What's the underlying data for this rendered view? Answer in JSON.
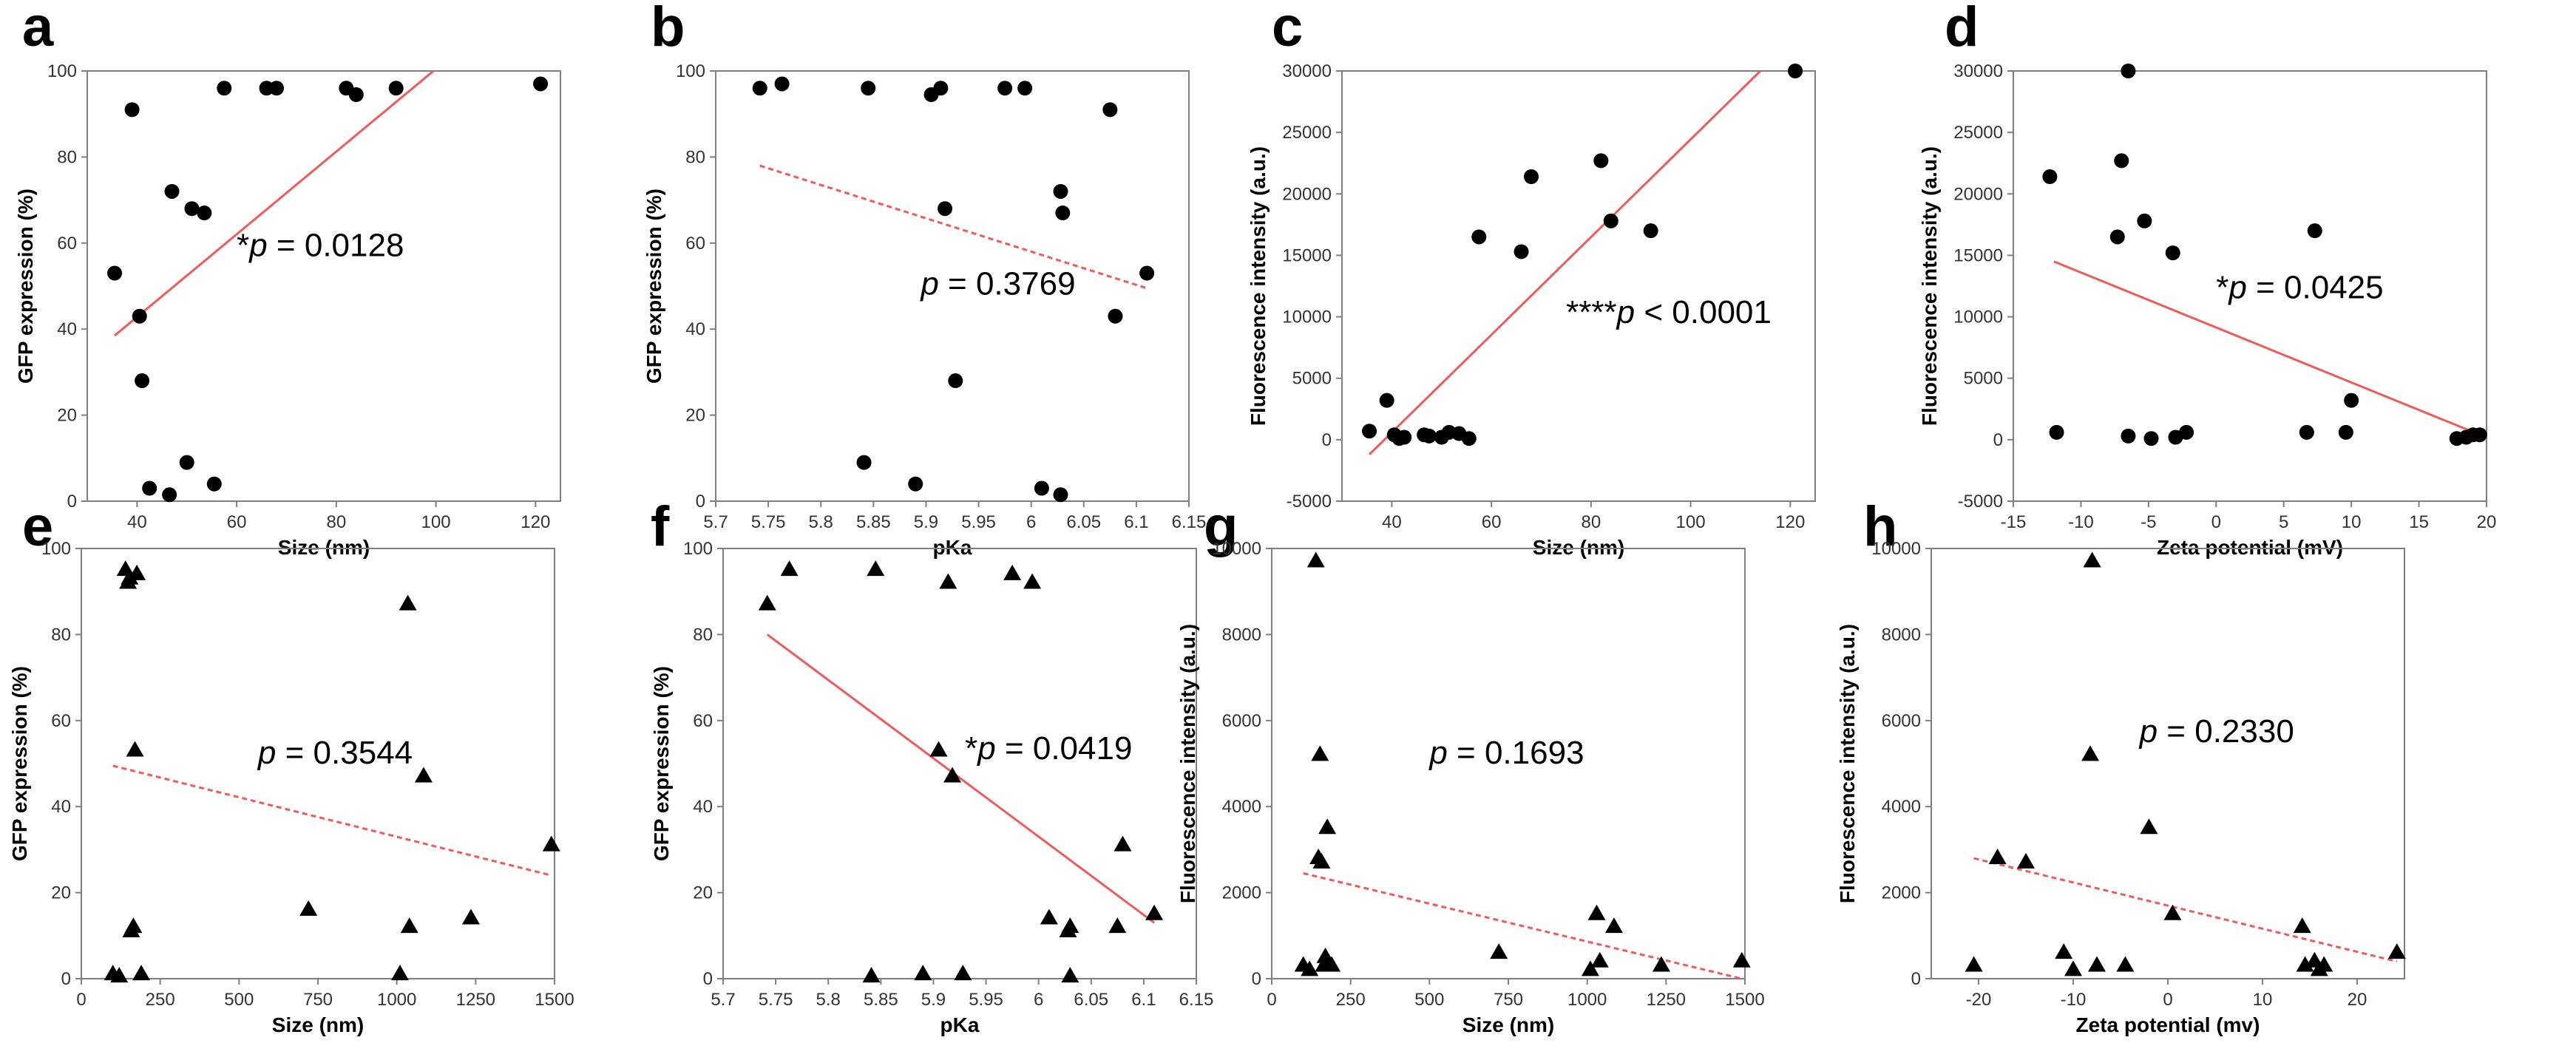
{
  "chart_data": [
    {
      "id": "a",
      "type": "scatter",
      "letter": "a",
      "marker": "circle",
      "xlabel": "Size (nm)",
      "ylabel": "GFP expression (%)",
      "xlim": [
        30,
        125
      ],
      "ylim": [
        0,
        100
      ],
      "xticks": [
        40,
        60,
        80,
        100,
        120
      ],
      "xtick_labels": [
        "40",
        "60",
        "80",
        "100",
        "120"
      ],
      "yticks": [
        0,
        20,
        40,
        60,
        80,
        100
      ],
      "ytick_labels": [
        "0",
        "20",
        "40",
        "60",
        "80",
        "100"
      ],
      "points": [
        [
          35.5,
          53
        ],
        [
          39,
          91
        ],
        [
          40.5,
          43
        ],
        [
          41,
          28
        ],
        [
          42.5,
          3
        ],
        [
          46.5,
          1.5
        ],
        [
          47,
          72
        ],
        [
          50,
          9
        ],
        [
          51,
          68
        ],
        [
          53.5,
          67
        ],
        [
          55.5,
          4
        ],
        [
          57.5,
          96
        ],
        [
          66,
          96
        ],
        [
          68,
          96
        ],
        [
          82,
          96
        ],
        [
          84,
          94.5
        ],
        [
          92,
          96
        ],
        [
          121,
          97
        ]
      ],
      "fit": {
        "x": [
          35.5,
          99.5
        ],
        "y": [
          38.5,
          100
        ],
        "style": "solid"
      },
      "annotation": {
        "star": "*",
        "p": "p",
        "rest": " = 0.0128",
        "x": 60,
        "y": 57
      }
    },
    {
      "id": "b",
      "type": "scatter",
      "letter": "b",
      "marker": "circle",
      "xlabel": "pKa",
      "ylabel": "GFP expression (%)",
      "xlim": [
        5.7,
        6.15
      ],
      "ylim": [
        0,
        100
      ],
      "xticks": [
        5.7,
        5.75,
        5.8,
        5.85,
        5.9,
        5.95,
        6,
        6.05,
        6.1,
        6.15
      ],
      "xtick_labels": [
        "5.7",
        "5.75",
        "5.8",
        "5.85",
        "5.9",
        "5.95",
        "6",
        "6.05",
        "6.1",
        "6.15"
      ],
      "yticks": [
        0,
        20,
        40,
        60,
        80,
        100
      ],
      "ytick_labels": [
        "0",
        "20",
        "40",
        "60",
        "80",
        "100"
      ],
      "points": [
        [
          5.742,
          96
        ],
        [
          5.763,
          97
        ],
        [
          5.841,
          9
        ],
        [
          5.845,
          96
        ],
        [
          5.89,
          4
        ],
        [
          5.905,
          94.5
        ],
        [
          5.914,
          96
        ],
        [
          5.918,
          68
        ],
        [
          5.928,
          28
        ],
        [
          5.975,
          96
        ],
        [
          5.994,
          96
        ],
        [
          6.01,
          3
        ],
        [
          6.028,
          1.5
        ],
        [
          6.028,
          72
        ],
        [
          6.03,
          67
        ],
        [
          6.075,
          91
        ],
        [
          6.08,
          43
        ],
        [
          6.11,
          53
        ]
      ],
      "fit": {
        "x": [
          5.742,
          6.11
        ],
        "y": [
          78,
          49.5
        ],
        "style": "dashed"
      },
      "annotation": {
        "star": "",
        "p": "p",
        "rest": " = 0.3769",
        "x": 5.895,
        "y": 48
      }
    },
    {
      "id": "c",
      "type": "scatter",
      "letter": "c",
      "marker": "circle",
      "xlabel": "Size (nm)",
      "ylabel": "Fluorescence intensity (a.u.)",
      "xlim": [
        30,
        125
      ],
      "ylim": [
        -5000,
        30000
      ],
      "xticks": [
        40,
        60,
        80,
        100,
        120
      ],
      "xtick_labels": [
        "40",
        "60",
        "80",
        "100",
        "120"
      ],
      "yticks": [
        -5000,
        0,
        5000,
        10000,
        15000,
        20000,
        25000,
        30000
      ],
      "ytick_labels": [
        "-5000",
        "0",
        "5000",
        "10000",
        "15000",
        "20000",
        "25000",
        "30000"
      ],
      "points": [
        [
          35.5,
          700
        ],
        [
          39,
          3200
        ],
        [
          40.5,
          400
        ],
        [
          41.5,
          100
        ],
        [
          42.5,
          200
        ],
        [
          46.5,
          400
        ],
        [
          47.5,
          300
        ],
        [
          50,
          200
        ],
        [
          51.5,
          600
        ],
        [
          53.5,
          500
        ],
        [
          55.5,
          100
        ],
        [
          57.5,
          16500
        ],
        [
          66,
          15300
        ],
        [
          68,
          21400
        ],
        [
          82,
          22700
        ],
        [
          84,
          17800
        ],
        [
          92,
          17000
        ],
        [
          121,
          30000
        ]
      ],
      "fit": {
        "x": [
          35.5,
          114
        ],
        "y": [
          -1200,
          30000
        ],
        "style": "solid"
      },
      "annotation": {
        "star": "****",
        "p": "p",
        "rest": " < 0.0001",
        "x": 75,
        "y": 9500
      }
    },
    {
      "id": "d",
      "type": "scatter",
      "letter": "d",
      "marker": "circle",
      "xlabel": "Zeta potential (mV)",
      "ylabel": "Fluorescence intensity (a.u.)",
      "xlim": [
        -15,
        20
      ],
      "ylim": [
        -5000,
        30000
      ],
      "xticks": [
        -15,
        -10,
        -5,
        0,
        5,
        10,
        15,
        20
      ],
      "xtick_labels": [
        "-15",
        "-10",
        "-5",
        "0",
        "5",
        "10",
        "15",
        "20"
      ],
      "yticks": [
        -5000,
        0,
        5000,
        10000,
        15000,
        20000,
        25000,
        30000
      ],
      "ytick_labels": [
        "-5000",
        "0",
        "5000",
        "10000",
        "15000",
        "20000",
        "25000",
        "30000"
      ],
      "points": [
        [
          -12.3,
          21400
        ],
        [
          -11.8,
          600
        ],
        [
          -7.3,
          16500
        ],
        [
          -7,
          22700
        ],
        [
          -6.5,
          30000
        ],
        [
          -6.5,
          300
        ],
        [
          -5.3,
          17800
        ],
        [
          -4.8,
          100
        ],
        [
          -3.2,
          15200
        ],
        [
          -3,
          200
        ],
        [
          -2.2,
          600
        ],
        [
          6.7,
          600
        ],
        [
          7.3,
          17000
        ],
        [
          9.6,
          600
        ],
        [
          10,
          3200
        ],
        [
          17.8,
          100
        ],
        [
          18.5,
          200
        ],
        [
          19,
          400
        ],
        [
          19.5,
          400
        ]
      ],
      "fit": {
        "x": [
          -12,
          19.3
        ],
        "y": [
          14500,
          500
        ],
        "style": "solid"
      },
      "annotation": {
        "star": "*",
        "p": "p",
        "rest": " = 0.0425",
        "x": 0,
        "y": 11500
      }
    },
    {
      "id": "e",
      "type": "scatter",
      "letter": "e",
      "marker": "triangle",
      "xlabel": "Size (nm)",
      "ylabel": "GFP expression (%)",
      "xlim": [
        0,
        1500
      ],
      "ylim": [
        0,
        100
      ],
      "xticks": [
        0,
        250,
        500,
        750,
        1000,
        1250,
        1500
      ],
      "xtick_labels": [
        "0",
        "250",
        "500",
        "750",
        "1000",
        "1250",
        "1500"
      ],
      "yticks": [
        0,
        20,
        40,
        60,
        80,
        100
      ],
      "ytick_labels": [
        "0",
        "20",
        "40",
        "60",
        "80",
        "100"
      ],
      "points": [
        [
          100,
          1
        ],
        [
          120,
          0.5
        ],
        [
          140,
          95
        ],
        [
          148,
          92
        ],
        [
          153,
          93
        ],
        [
          158,
          11
        ],
        [
          165,
          12
        ],
        [
          170,
          53
        ],
        [
          176,
          94
        ],
        [
          190,
          1
        ],
        [
          720,
          16
        ],
        [
          1010,
          1
        ],
        [
          1035,
          87
        ],
        [
          1040,
          12
        ],
        [
          1085,
          47
        ],
        [
          1235,
          14
        ],
        [
          1490,
          31
        ]
      ],
      "fit": {
        "x": [
          100,
          1490
        ],
        "y": [
          49.5,
          24
        ],
        "style": "dashed"
      },
      "annotation": {
        "star": "",
        "p": "p",
        "rest": " = 0.3544",
        "x": 560,
        "y": 50
      }
    },
    {
      "id": "f",
      "type": "scatter",
      "letter": "f",
      "marker": "triangle",
      "xlabel": "pKa",
      "ylabel": "GFP expression (%)",
      "xlim": [
        5.7,
        6.15
      ],
      "ylim": [
        0,
        100
      ],
      "xticks": [
        5.7,
        5.75,
        5.8,
        5.85,
        5.9,
        5.95,
        6,
        6.05,
        6.1,
        6.15
      ],
      "xtick_labels": [
        "5.7",
        "5.75",
        "5.8",
        "5.85",
        "5.9",
        "5.95",
        "6",
        "6.05",
        "6.1",
        "6.15"
      ],
      "yticks": [
        0,
        20,
        40,
        60,
        80,
        100
      ],
      "ytick_labels": [
        "0",
        "20",
        "40",
        "60",
        "80",
        "100"
      ],
      "points": [
        [
          5.742,
          87
        ],
        [
          5.763,
          95
        ],
        [
          5.841,
          0.5
        ],
        [
          5.845,
          95
        ],
        [
          5.89,
          1
        ],
        [
          5.905,
          53
        ],
        [
          5.914,
          92
        ],
        [
          5.918,
          47
        ],
        [
          5.928,
          1
        ],
        [
          5.975,
          94
        ],
        [
          5.994,
          92
        ],
        [
          6.01,
          14
        ],
        [
          6.028,
          11
        ],
        [
          6.03,
          12
        ],
        [
          6.03,
          0.5
        ],
        [
          6.075,
          12
        ],
        [
          6.08,
          31
        ],
        [
          6.11,
          15
        ]
      ],
      "fit": {
        "x": [
          5.742,
          6.11
        ],
        "y": [
          80,
          13
        ],
        "style": "solid"
      },
      "annotation": {
        "star": "*",
        "p": "p",
        "rest": " = 0.0419",
        "x": 5.93,
        "y": 51
      }
    },
    {
      "id": "g",
      "type": "scatter",
      "letter": "g",
      "marker": "triangle",
      "xlabel": "Size (nm)",
      "ylabel": "Fluorescence intensity (a.u.)",
      "xlim": [
        0,
        1500
      ],
      "ylim": [
        0,
        10000
      ],
      "xticks": [
        0,
        250,
        500,
        750,
        1000,
        1250,
        1500
      ],
      "xtick_labels": [
        "0",
        "250",
        "500",
        "750",
        "1000",
        "1250",
        "1500"
      ],
      "yticks": [
        0,
        2000,
        4000,
        6000,
        8000,
        10000
      ],
      "ytick_labels": [
        "0",
        "2000",
        "4000",
        "6000",
        "8000",
        "10000"
      ],
      "points": [
        [
          100,
          300
        ],
        [
          120,
          200
        ],
        [
          140,
          9700
        ],
        [
          148,
          2800
        ],
        [
          153,
          5200
        ],
        [
          158,
          2700
        ],
        [
          165,
          300
        ],
        [
          170,
          500
        ],
        [
          176,
          3500
        ],
        [
          190,
          300
        ],
        [
          720,
          600
        ],
        [
          1010,
          200
        ],
        [
          1030,
          1500
        ],
        [
          1040,
          400
        ],
        [
          1085,
          1200
        ],
        [
          1235,
          300
        ],
        [
          1490,
          400
        ]
      ],
      "fit": {
        "x": [
          100,
          1490
        ],
        "y": [
          2450,
          0
        ],
        "style": "dashed"
      },
      "annotation": {
        "star": "",
        "p": "p",
        "rest": " = 0.1693",
        "x": 500,
        "y": 5000
      }
    },
    {
      "id": "h",
      "type": "scatter",
      "letter": "h",
      "marker": "triangle",
      "xlabel": "Zeta potential (mv)",
      "ylabel": "Fluorescence intensity (a.u.)",
      "xlim": [
        -25,
        25
      ],
      "ylim": [
        0,
        10000
      ],
      "xticks": [
        -20,
        -10,
        0,
        10,
        20
      ],
      "xtick_labels": [
        "-20",
        "-10",
        "0",
        "10",
        "20"
      ],
      "yticks": [
        0,
        2000,
        4000,
        6000,
        8000,
        10000
      ],
      "ytick_labels": [
        "0",
        "2000",
        "4000",
        "6000",
        "8000",
        "10000"
      ],
      "points": [
        [
          -20.5,
          300
        ],
        [
          -18,
          2800
        ],
        [
          -15,
          2700
        ],
        [
          -11,
          600
        ],
        [
          -10,
          200
        ],
        [
          -8,
          9700
        ],
        [
          -8.2,
          5200
        ],
        [
          -7.5,
          300
        ],
        [
          -4.5,
          300
        ],
        [
          -2,
          3500
        ],
        [
          0.5,
          1500
        ],
        [
          14.2,
          1200
        ],
        [
          14.5,
          300
        ],
        [
          15.5,
          400
        ],
        [
          16,
          200
        ],
        [
          16.5,
          300
        ],
        [
          24.2,
          600
        ]
      ],
      "fit": {
        "x": [
          -20.5,
          24.2
        ],
        "y": [
          2800,
          400
        ],
        "style": "dashed"
      },
      "annotation": {
        "star": "",
        "p": "p",
        "rest": " = 0.2330",
        "x": -3,
        "y": 5500
      }
    }
  ],
  "colors": {
    "point": "#000000",
    "fit": "#f05a5a",
    "frame": "#7f7f7f"
  }
}
